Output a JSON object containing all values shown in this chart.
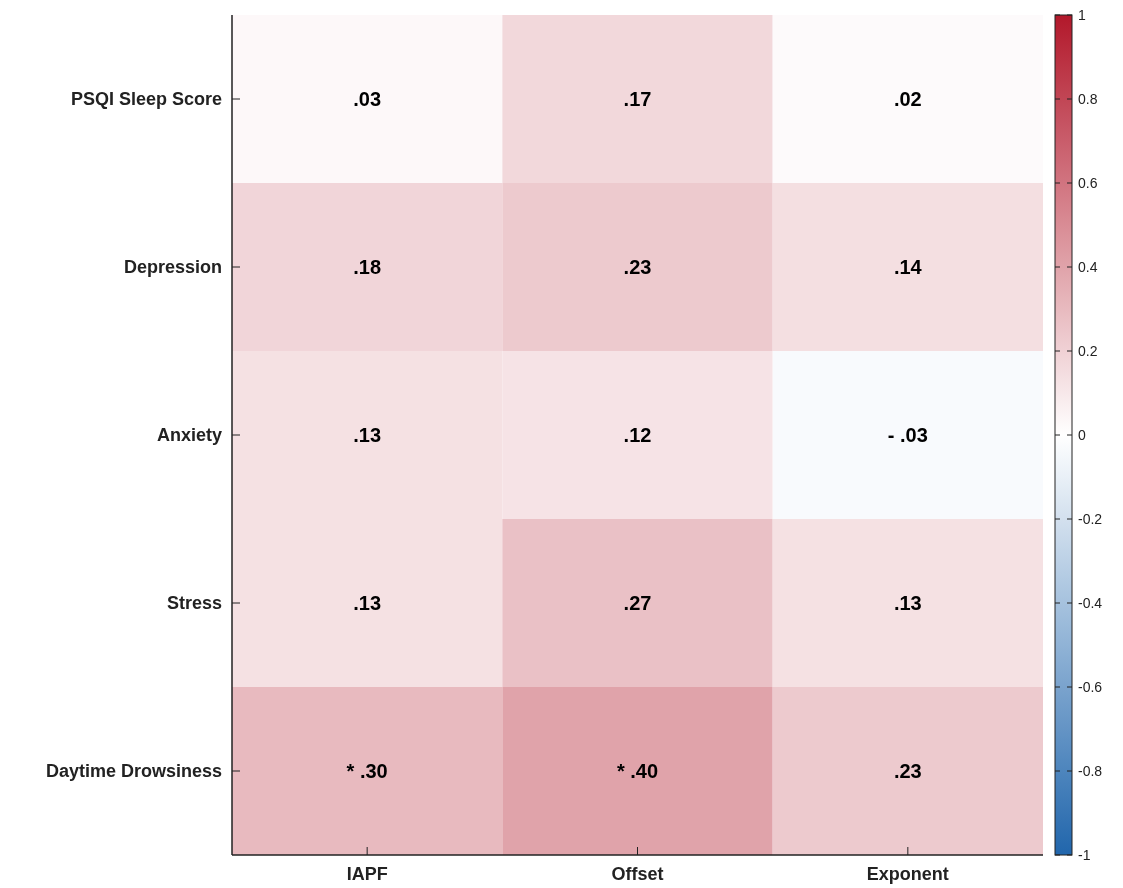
{
  "chart_data": {
    "type": "heatmap",
    "categories": [
      "IAPF",
      "Offset",
      "Exponent"
    ],
    "y_categories": [
      "PSQI Sleep Score",
      "Depression",
      "Anxiety",
      "Stress",
      "Daytime Drowsiness"
    ],
    "cells": [
      [
        0.03,
        0.17,
        0.02
      ],
      [
        0.18,
        0.23,
        0.14
      ],
      [
        0.13,
        0.12,
        -0.03
      ],
      [
        0.13,
        0.27,
        0.13
      ],
      [
        0.3,
        0.4,
        0.23
      ]
    ],
    "cell_labels": [
      [
        ".03",
        ".17",
        ".02"
      ],
      [
        ".18",
        ".23",
        ".14"
      ],
      [
        ".13",
        ".12",
        "- .03"
      ],
      [
        ".13",
        ".27",
        ".13"
      ],
      [
        "* .30",
        "* .40",
        ".23"
      ]
    ],
    "clim": [
      -1,
      1
    ],
    "cticks": [
      -1,
      -0.8,
      -0.6,
      -0.4,
      -0.2,
      0,
      0.2,
      0.4,
      0.6,
      0.8,
      1
    ]
  }
}
